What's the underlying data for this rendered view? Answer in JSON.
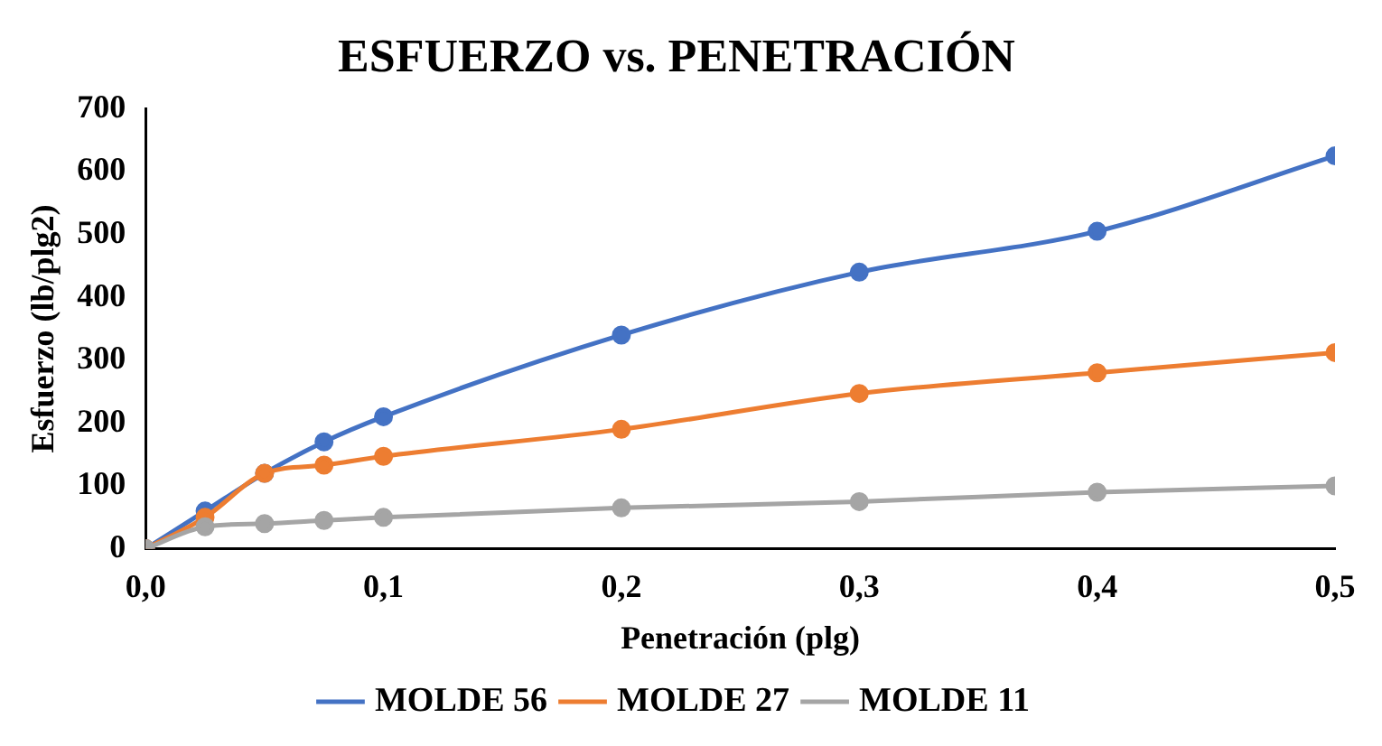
{
  "chart_data": {
    "type": "line",
    "title": "ESFUERZO vs. PENETRACIÓN",
    "xlabel": "Penetración (plg)",
    "ylabel": "Esfuerzo (lb/plg2)",
    "x": [
      0,
      0.025,
      0.05,
      0.075,
      0.1,
      0.2,
      0.3,
      0.4,
      0.5
    ],
    "series": [
      {
        "name": "MOLDE 56",
        "color": "#4472c4",
        "values": [
          0,
          60,
          120,
          170,
          210,
          340,
          440,
          505,
          625
        ]
      },
      {
        "name": "MOLDE 27",
        "color": "#ed7d31",
        "values": [
          0,
          50,
          120,
          133,
          147,
          190,
          247,
          280,
          312
        ]
      },
      {
        "name": "MOLDE 11",
        "color": "#a5a5a5",
        "values": [
          0,
          35,
          40,
          45,
          50,
          65,
          75,
          90,
          100
        ]
      }
    ],
    "xlim": [
      0,
      0.5
    ],
    "xticks": [
      {
        "value": 0,
        "label": "0,0"
      },
      {
        "value": 0.1,
        "label": "0,1"
      },
      {
        "value": 0.2,
        "label": "0,2"
      },
      {
        "value": 0.3,
        "label": "0,3"
      },
      {
        "value": 0.4,
        "label": "0,4"
      },
      {
        "value": 0.5,
        "label": "0,5"
      }
    ],
    "ylim": [
      0,
      700
    ],
    "yticks": [
      0,
      100,
      200,
      300,
      400,
      500,
      600,
      700
    ],
    "grid": false,
    "legend": "bottom",
    "marker": "circle",
    "line_style": "solid"
  }
}
